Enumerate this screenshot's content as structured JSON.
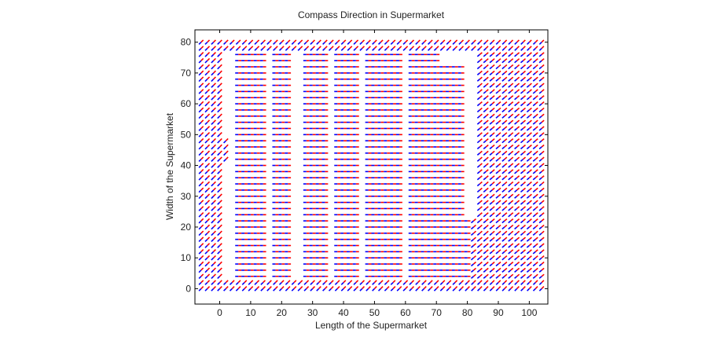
{
  "chart_data": {
    "type": "quiver",
    "title": "Compass Direction in Supermarket",
    "xlabel": "Length of the Supermarket",
    "ylabel": "Width of the Supermarket",
    "xlim": [
      -8,
      106
    ],
    "ylim": [
      -5,
      84
    ],
    "xticks": [
      0,
      10,
      20,
      30,
      40,
      50,
      60,
      70,
      80,
      90,
      100
    ],
    "yticks": [
      0,
      10,
      20,
      30,
      40,
      50,
      60,
      70,
      80
    ],
    "grid": false,
    "grid_step": 2,
    "arrow_length": 2,
    "series": [
      {
        "color": "#ff0000",
        "angle_deg_left": 45,
        "angle_deg_mid": 0,
        "angle_deg_right": 40
      },
      {
        "color": "#0000ff",
        "angle_deg_left": 225,
        "angle_deg_mid": 180,
        "angle_deg_right": 220
      }
    ],
    "open_regions": [
      [
        -8,
        106,
        0,
        3
      ],
      [
        -8,
        106,
        78,
        81
      ],
      [
        -8,
        0,
        3,
        78
      ],
      [
        -8,
        2,
        42,
        48
      ],
      [
        6,
        14,
        3,
        78
      ],
      [
        18,
        22,
        3,
        76
      ],
      [
        28,
        34,
        3,
        78
      ],
      [
        38,
        44,
        3,
        78
      ],
      [
        48,
        58,
        3,
        76
      ],
      [
        61,
        70,
        3,
        76
      ],
      [
        72,
        78,
        3,
        72
      ],
      [
        80,
        106,
        3,
        22
      ],
      [
        90,
        106,
        22,
        78
      ],
      [
        84,
        90,
        12,
        78
      ],
      [
        90,
        96,
        58,
        62
      ],
      [
        90,
        96,
        48,
        52
      ]
    ]
  }
}
